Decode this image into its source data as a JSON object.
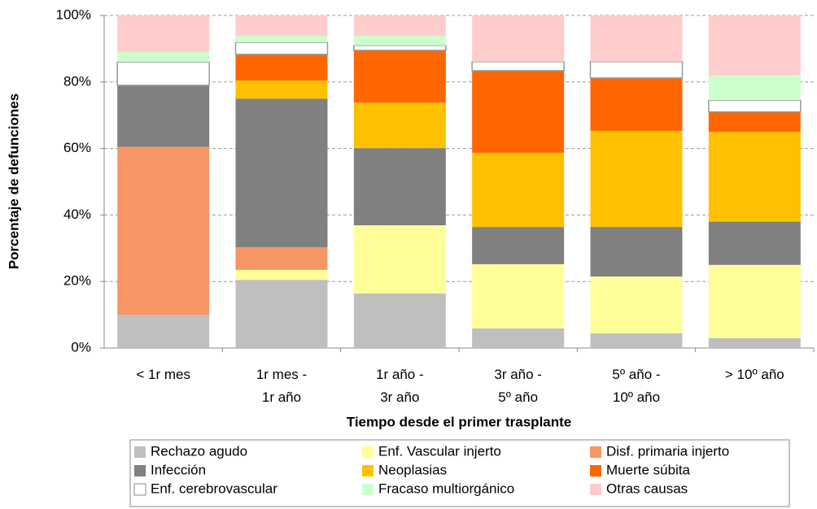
{
  "chart_data": {
    "type": "stacked-bar",
    "y_label": "Porcentaje de defunciones",
    "x_label": "Tiempo desde el primer trasplante",
    "categories": [
      "< 1r mes",
      "1r mes -\n1r año",
      "1r año -\n3r año",
      "3r año -\n5º año",
      "5º año -\n10º año",
      "> 10º año"
    ],
    "ylim": [
      0,
      100
    ],
    "yticks": [
      {
        "value": 0,
        "label": "0%"
      },
      {
        "value": 20,
        "label": "20%"
      },
      {
        "value": 40,
        "label": "40%"
      },
      {
        "value": 60,
        "label": "60%"
      },
      {
        "value": 80,
        "label": "80%"
      },
      {
        "value": 100,
        "label": "100%"
      }
    ],
    "grid": true,
    "series": [
      {
        "name": "Rechazo agudo",
        "color": "#bfbfbf",
        "values": [
          10,
          20.5,
          16.4,
          5.9,
          4.4,
          3
        ]
      },
      {
        "name": "Enf. Vascular injerto",
        "color": "#ffff99",
        "values": [
          0,
          3,
          20.5,
          19.3,
          17.1,
          22
        ]
      },
      {
        "name": "Disf. primaria injerto",
        "color": "#f79664",
        "values": [
          50.5,
          6.8,
          0,
          0,
          0,
          0
        ]
      },
      {
        "name": "Infección",
        "color": "#808080",
        "values": [
          18.5,
          44.7,
          23.2,
          11.2,
          14.9,
          13
        ]
      },
      {
        "name": "Neoplasias",
        "color": "#ffc000",
        "values": [
          0,
          5.4,
          13.7,
          22.3,
          28.9,
          27
        ]
      },
      {
        "name": "Muerte súbita",
        "color": "#ff6600",
        "values": [
          0,
          7.9,
          15.7,
          24.7,
          15.9,
          6
        ]
      },
      {
        "name": "Enf. cerebrovascular",
        "color": "#ffffff",
        "values": [
          7,
          3.6,
          1.5,
          2.7,
          4.9,
          3.5
        ]
      },
      {
        "name": "Fracaso multiorgánico",
        "color": "#ccffcc",
        "values": [
          3,
          2,
          2.9,
          0,
          0,
          7.5
        ]
      },
      {
        "name": "Otras causas",
        "color": "#ffcccc",
        "values": [
          11,
          6.1,
          6.1,
          13.9,
          13.9,
          18
        ]
      }
    ]
  }
}
